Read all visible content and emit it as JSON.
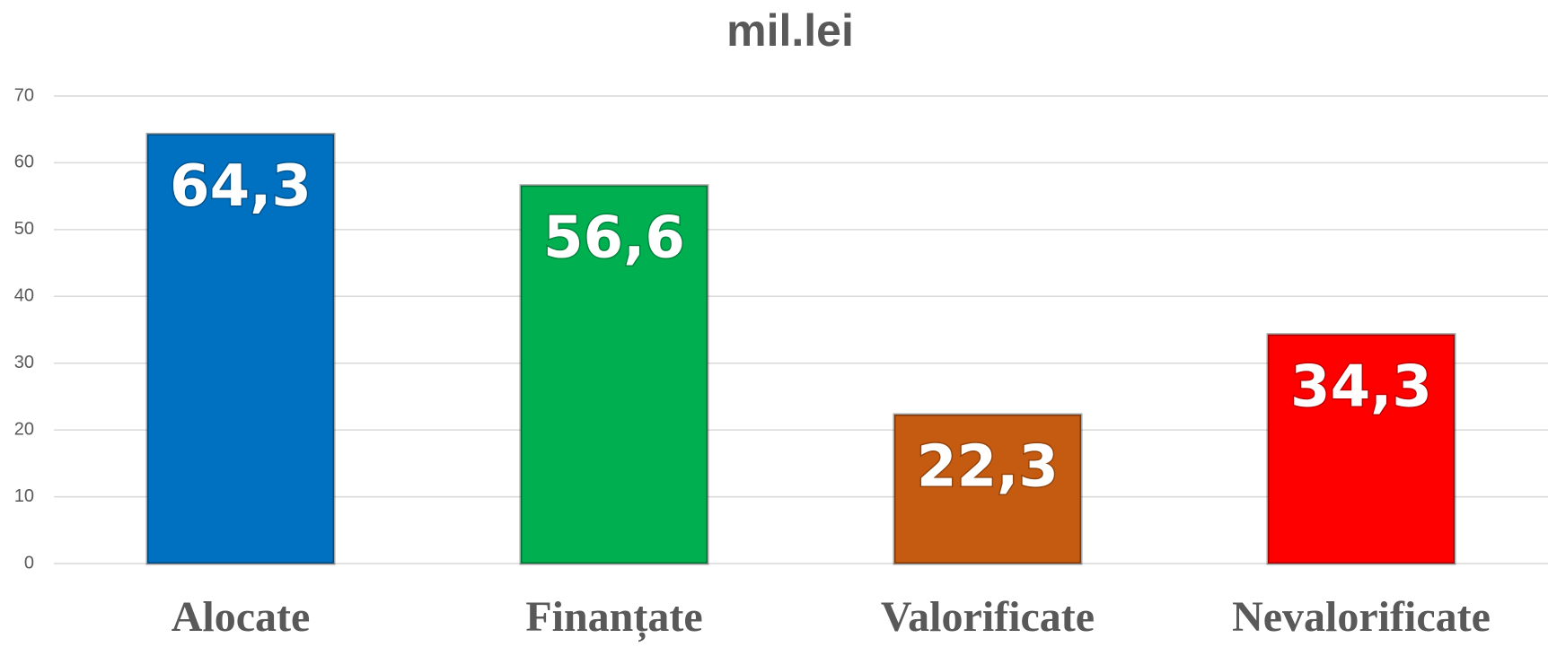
{
  "chart_data": {
    "type": "bar",
    "title": "mil.lei",
    "categories": [
      "Alocate",
      "Finanțate",
      "Valorificate",
      "Nevalorificate"
    ],
    "values": [
      64.3,
      56.6,
      22.3,
      34.3
    ],
    "value_labels": [
      "64,3",
      "56,6",
      "22,3",
      "34,3"
    ],
    "colors": [
      "#0070c0",
      "#00b050",
      "#c55a11",
      "#ff0000"
    ],
    "ylim": [
      0,
      70
    ],
    "yticks": [
      0,
      10,
      20,
      30,
      40,
      50,
      60,
      70
    ],
    "grid": true
  }
}
